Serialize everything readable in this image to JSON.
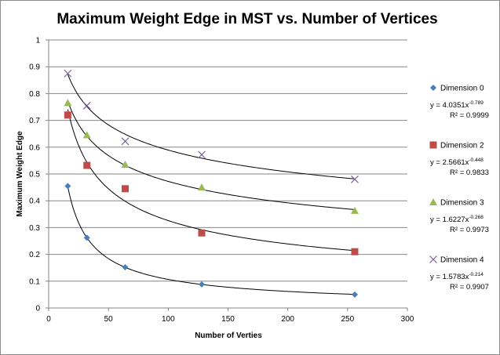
{
  "chart_data": {
    "type": "scatter",
    "title": "Maximum Weight Edge in MST vs. Number of Vertices",
    "xlabel": "Number of Verties",
    "ylabel": "Maximum Weight Edge",
    "xlim": [
      0,
      300
    ],
    "ylim": [
      0,
      1
    ],
    "xticks": [
      0,
      50,
      100,
      150,
      200,
      250,
      300
    ],
    "yticks": [
      0,
      0.1,
      0.2,
      0.3,
      0.4,
      0.5,
      0.6,
      0.7,
      0.8,
      0.9,
      1
    ],
    "grid": "horizontal major",
    "legend": "right",
    "series": [
      {
        "name": "Dimension 0",
        "marker": "diamond",
        "color": "#4a7ebb",
        "x": [
          16,
          32,
          64,
          128,
          256
        ],
        "y": [
          0.455,
          0.262,
          0.152,
          0.088,
          0.05
        ],
        "trendline": {
          "coef": 4.0351,
          "exp": -0.789,
          "equation_prefix": "y = 4.0351x",
          "equation_exponent": "-0.789",
          "r2_text": "R² = 0.9999"
        }
      },
      {
        "name": "Dimension 2",
        "marker": "square",
        "color": "#be4b48",
        "x": [
          16,
          32,
          64,
          128,
          256
        ],
        "y": [
          0.72,
          0.532,
          0.445,
          0.28,
          0.21
        ],
        "trendline": {
          "coef": 2.5661,
          "exp": -0.448,
          "equation_prefix": "y = 2.5661x",
          "equation_exponent": "-0.448",
          "r2_text": "R² = 0.9833"
        }
      },
      {
        "name": "Dimension 3",
        "marker": "triangle",
        "color": "#98b954",
        "x": [
          16,
          32,
          64,
          128,
          256
        ],
        "y": [
          0.765,
          0.645,
          0.535,
          0.45,
          0.363
        ],
        "trendline": {
          "coef": 1.6227,
          "exp": -0.268,
          "equation_prefix": "y = 1.6227x",
          "equation_exponent": "-0.268",
          "r2_text": "R² = 0.9973"
        }
      },
      {
        "name": "Dimension 4",
        "marker": "x",
        "color": "#7d60a0",
        "x": [
          16,
          32,
          64,
          128,
          256
        ],
        "y": [
          0.875,
          0.755,
          0.622,
          0.572,
          0.48
        ],
        "trendline": {
          "coef": 1.5783,
          "exp": -0.214,
          "equation_prefix": "y = 1.5783x",
          "equation_exponent": "-0.214",
          "r2_text": "R² = 0.9907"
        }
      }
    ]
  }
}
